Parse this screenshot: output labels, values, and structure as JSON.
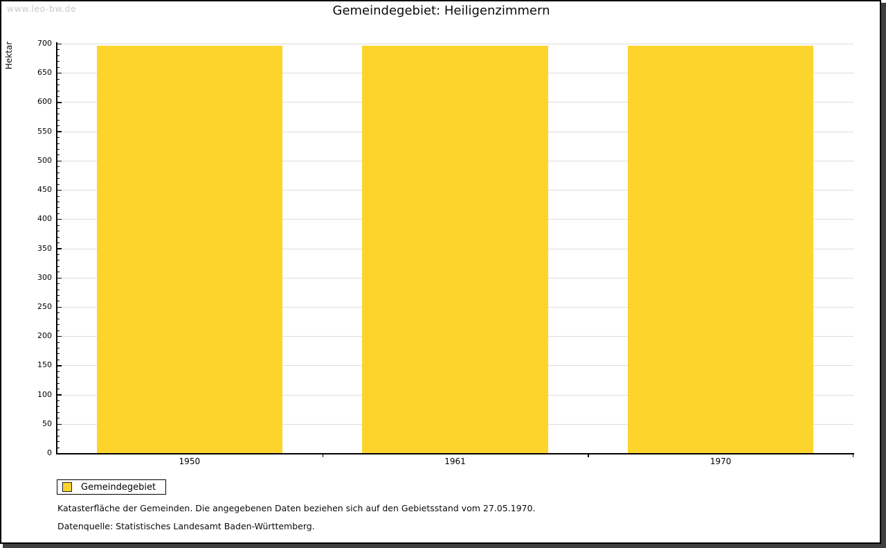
{
  "watermark": "www.leo-bw.de",
  "title": "Gemeindegebiet: Heiligenzimmern",
  "chart_data": {
    "type": "bar",
    "title": "Gemeindegebiet: Heiligenzimmern",
    "categories": [
      "1950",
      "1961",
      "1970"
    ],
    "series": [
      {
        "name": "Gemeindegebiet",
        "values": [
          697,
          697,
          697
        ]
      }
    ],
    "xlabel": "",
    "ylabel": "Hektar",
    "ylim": [
      0,
      700
    ],
    "y_major_step": 50,
    "y_minor_step": 10,
    "grid": "horizontal-major",
    "legend_position": "bottom-left",
    "bar_width_fraction": 0.7
  },
  "legend": {
    "items": [
      {
        "label": "Gemeindegebiet",
        "color": "#FDD42C"
      }
    ]
  },
  "footnotes": [
    "Katasterfläche der Gemeinden. Die angegebenen Daten beziehen sich auf den Gebietsstand vom 27.05.1970.",
    "Datenquelle: Statistisches Landesamt Baden-Württemberg."
  ],
  "colors": {
    "bar": "#FDD42C",
    "grid": "#DCDCDC",
    "axis": "#000000",
    "watermark": "#C9C9C9",
    "frame_shadow": "#3F3F3F"
  }
}
